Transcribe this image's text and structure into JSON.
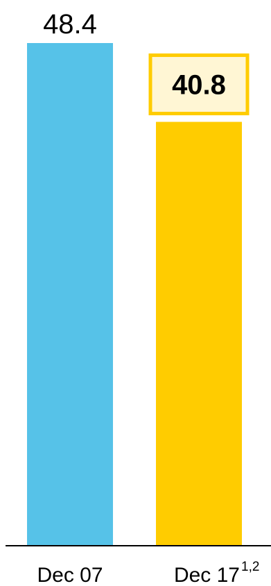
{
  "chart_data": {
    "type": "bar",
    "categories": [
      "Dec 07",
      "Dec 17"
    ],
    "category_superscripts": [
      "",
      "1,2"
    ],
    "values": [
      48.4,
      40.8
    ],
    "value_labels": [
      "48.4",
      "40.8"
    ],
    "highlighted_index": 1,
    "colors": [
      "#56C2E8",
      "#FFCC00"
    ],
    "highlight_box": {
      "border_color": "#FFCC00",
      "fill_color": "#FFF6D4"
    },
    "axis_color": "#000000",
    "ylim": [
      0,
      48.4
    ],
    "grid": false,
    "title": "",
    "xlabel": "",
    "ylabel": ""
  }
}
